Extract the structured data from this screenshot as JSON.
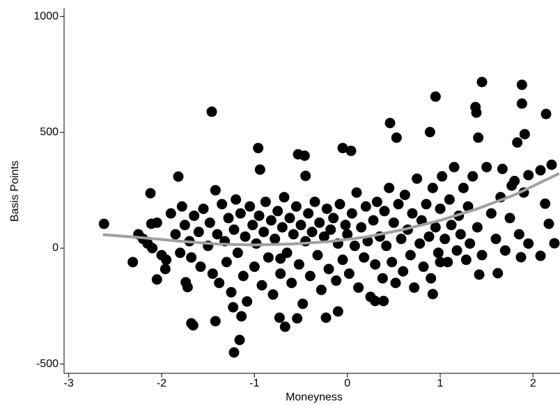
{
  "chart_data": {
    "type": "scatter",
    "x_label": "Moneyness",
    "y_label": "Basis Points",
    "xlim": [
      -3.05,
      2.29
    ],
    "ylim": [
      -540,
      1035
    ],
    "xticks": [
      -3,
      -2,
      -1,
      0,
      1,
      2
    ],
    "yticks": [
      -500,
      0,
      500,
      1000
    ],
    "color": "#000000",
    "fit_color": "#a0a0a0",
    "points": [
      [
        -2.62,
        105
      ],
      [
        -2.31,
        -60
      ],
      [
        -2.12,
        237
      ],
      [
        -2.11,
        105
      ],
      [
        -1.96,
        -90
      ],
      [
        -2.05,
        -135
      ],
      [
        -1.82,
        309
      ],
      [
        -1.46,
        589
      ],
      [
        -1.68,
        -324
      ],
      [
        -1.66,
        -333
      ],
      [
        -1.42,
        -315
      ],
      [
        -0.96,
        432
      ],
      [
        -0.94,
        339
      ],
      [
        -1.16,
        -396
      ],
      [
        -1.22,
        -450
      ],
      [
        -0.53,
        405
      ],
      [
        -0.46,
        399
      ],
      [
        -0.45,
        312
      ],
      [
        -0.72,
        -45
      ],
      [
        -0.73,
        -300
      ],
      [
        -0.67,
        -339
      ],
      [
        -0.54,
        -303
      ],
      [
        -0.05,
        432
      ],
      [
        0.04,
        420
      ],
      [
        0.46,
        540
      ],
      [
        0.53,
        477
      ],
      [
        0.89,
        501
      ],
      [
        0.95,
        654
      ],
      [
        1.45,
        717
      ],
      [
        1.38,
        609
      ],
      [
        1.39,
        585
      ],
      [
        1.88,
        705
      ],
      [
        1.88,
        624
      ],
      [
        1.91,
        492
      ],
      [
        2.14,
        579
      ],
      [
        1.83,
        456
      ],
      [
        1.41,
        477
      ],
      [
        1.42,
        -114
      ],
      [
        1.62,
        -108
      ],
      [
        1.87,
        -39
      ],
      [
        2.08,
        -33
      ],
      [
        2.23,
        21
      ],
      [
        2.17,
        105
      ],
      [
        2.13,
        192
      ],
      [
        2.2,
        360
      ],
      [
        2.08,
        336
      ],
      [
        1.95,
        315
      ],
      [
        1.77,
        270
      ],
      [
        1.67,
        342
      ],
      [
        0.92,
        -198
      ],
      [
        1.0,
        -60
      ],
      [
        0.3,
        -228
      ],
      [
        0.39,
        -228
      ],
      [
        -0.1,
        -273
      ],
      [
        -0.23,
        -300
      ],
      [
        -1.14,
        -294
      ],
      [
        -1.23,
        -255
      ],
      [
        -1.74,
        -147
      ],
      [
        -1.72,
        -168
      ],
      [
        -1.9,
        150
      ],
      [
        -1.85,
        60
      ],
      [
        -1.8,
        -20
      ],
      [
        -1.78,
        180
      ],
      [
        -1.75,
        100
      ],
      [
        -1.7,
        30
      ],
      [
        -1.68,
        -40
      ],
      [
        -1.65,
        140
      ],
      [
        -1.6,
        70
      ],
      [
        -1.58,
        -80
      ],
      [
        -1.55,
        170
      ],
      [
        -1.5,
        10
      ],
      [
        -1.48,
        110
      ],
      [
        -1.45,
        -110
      ],
      [
        -1.42,
        250
      ],
      [
        -1.4,
        60
      ],
      [
        -1.38,
        -150
      ],
      [
        -1.35,
        190
      ],
      [
        -1.32,
        30
      ],
      [
        -1.3,
        -60
      ],
      [
        -1.28,
        130
      ],
      [
        -1.25,
        -190
      ],
      [
        -1.22,
        80
      ],
      [
        -1.2,
        210
      ],
      [
        -1.18,
        -20
      ],
      [
        -1.15,
        150
      ],
      [
        -1.12,
        -120
      ],
      [
        -1.1,
        50
      ],
      [
        -1.08,
        -230
      ],
      [
        -1.05,
        180
      ],
      [
        -1.02,
        100
      ],
      [
        -1.0,
        -80
      ],
      [
        -0.98,
        20
      ],
      [
        -0.95,
        140
      ],
      [
        -0.92,
        -160
      ],
      [
        -0.9,
        70
      ],
      [
        -0.88,
        200
      ],
      [
        -0.85,
        -40
      ],
      [
        -0.82,
        120
      ],
      [
        -0.8,
        -200
      ],
      [
        -0.78,
        40
      ],
      [
        -0.75,
        160
      ],
      [
        -0.72,
        -110
      ],
      [
        -0.7,
        90
      ],
      [
        -0.68,
        220
      ],
      [
        -0.65,
        -20
      ],
      [
        -0.62,
        130
      ],
      [
        -0.6,
        -150
      ],
      [
        -0.58,
        60
      ],
      [
        -0.55,
        180
      ],
      [
        -0.52,
        -70
      ],
      [
        -0.5,
        100
      ],
      [
        -0.48,
        -240
      ],
      [
        -0.45,
        30
      ],
      [
        -0.42,
        150
      ],
      [
        -0.4,
        -120
      ],
      [
        -0.38,
        70
      ],
      [
        -0.35,
        200
      ],
      [
        -0.32,
        -30
      ],
      [
        -0.3,
        110
      ],
      [
        -0.28,
        -180
      ],
      [
        -0.25,
        50
      ],
      [
        -0.22,
        170
      ],
      [
        -0.2,
        -90
      ],
      [
        -0.18,
        80
      ],
      [
        -0.15,
        130
      ],
      [
        -0.12,
        -140
      ],
      [
        -0.1,
        20
      ],
      [
        -0.08,
        190
      ],
      [
        -0.05,
        -50
      ],
      [
        -0.02,
        100
      ],
      [
        0.0,
        60
      ],
      [
        0.02,
        -110
      ],
      [
        0.05,
        150
      ],
      [
        0.08,
        10
      ],
      [
        0.1,
        240
      ],
      [
        0.12,
        -170
      ],
      [
        0.15,
        90
      ],
      [
        0.18,
        -40
      ],
      [
        0.2,
        180
      ],
      [
        0.22,
        30
      ],
      [
        0.25,
        -210
      ],
      [
        0.28,
        120
      ],
      [
        0.3,
        -70
      ],
      [
        0.32,
        200
      ],
      [
        0.35,
        50
      ],
      [
        0.38,
        -130
      ],
      [
        0.4,
        160
      ],
      [
        0.42,
        10
      ],
      [
        0.45,
        260
      ],
      [
        0.48,
        -60
      ],
      [
        0.5,
        110
      ],
      [
        0.52,
        -150
      ],
      [
        0.55,
        190
      ],
      [
        0.58,
        40
      ],
      [
        0.6,
        -100
      ],
      [
        0.62,
        230
      ],
      [
        0.65,
        80
      ],
      [
        0.68,
        -30
      ],
      [
        0.7,
        150
      ],
      [
        0.72,
        -170
      ],
      [
        0.75,
        300
      ],
      [
        0.78,
        20
      ],
      [
        0.8,
        120
      ],
      [
        0.82,
        -80
      ],
      [
        0.85,
        190
      ],
      [
        0.88,
        50
      ],
      [
        0.9,
        -130
      ],
      [
        0.92,
        260
      ],
      [
        0.95,
        90
      ],
      [
        0.98,
        -20
      ],
      [
        1.0,
        170
      ],
      [
        1.02,
        310
      ],
      [
        1.05,
        40
      ],
      [
        1.08,
        -60
      ],
      [
        1.1,
        210
      ],
      [
        1.12,
        100
      ],
      [
        1.15,
        350
      ],
      [
        1.18,
        -10
      ],
      [
        1.2,
        140
      ],
      [
        1.22,
        60
      ],
      [
        1.25,
        260
      ],
      [
        1.28,
        -50
      ],
      [
        1.3,
        180
      ],
      [
        1.32,
        20
      ],
      [
        1.35,
        310
      ],
      [
        1.4,
        90
      ],
      [
        1.45,
        -30
      ],
      [
        1.5,
        350
      ],
      [
        1.55,
        150
      ],
      [
        1.6,
        40
      ],
      [
        1.65,
        220
      ],
      [
        1.7,
        -10
      ],
      [
        1.75,
        130
      ],
      [
        1.8,
        290
      ],
      [
        1.85,
        60
      ],
      [
        1.9,
        240
      ],
      [
        1.95,
        20
      ],
      [
        -2.2,
        40
      ],
      [
        -2.1,
        0
      ],
      [
        -2.25,
        60
      ],
      [
        -2.0,
        -30
      ],
      [
        -2.05,
        110
      ],
      [
        -1.95,
        -50
      ],
      [
        -2.15,
        20
      ]
    ],
    "fit": [
      [
        -2.62,
        58
      ],
      [
        -2.2,
        45
      ],
      [
        -1.8,
        30
      ],
      [
        -1.4,
        18
      ],
      [
        -1.0,
        14
      ],
      [
        -0.6,
        18
      ],
      [
        -0.2,
        28
      ],
      [
        0.2,
        48
      ],
      [
        0.6,
        80
      ],
      [
        1.0,
        120
      ],
      [
        1.4,
        170
      ],
      [
        1.8,
        230
      ],
      [
        2.27,
        320
      ]
    ]
  }
}
